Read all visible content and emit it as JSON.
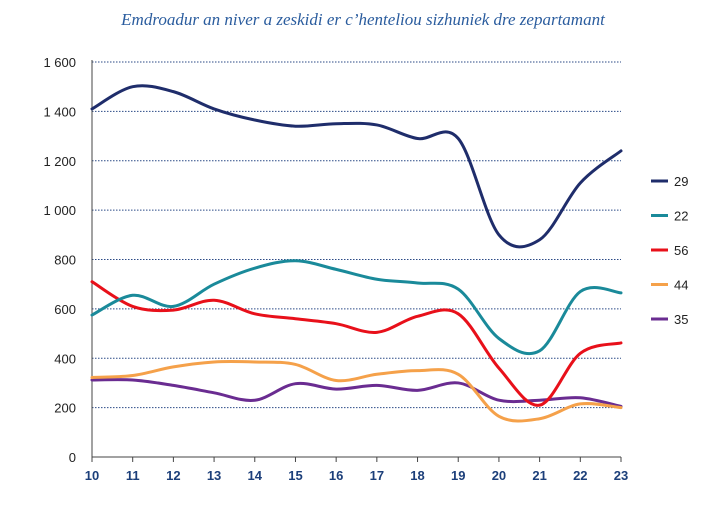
{
  "chart_data": {
    "type": "line",
    "title": "Emdroadur an niver a zeskidi er c’henteliou sizhuniek dre zepartamant",
    "xlabel": "",
    "ylabel": "",
    "x": [
      10,
      11,
      12,
      13,
      14,
      15,
      16,
      17,
      18,
      19,
      20,
      21,
      22,
      23
    ],
    "xlim": [
      10,
      23
    ],
    "ylim": [
      0,
      1600
    ],
    "yticks": [
      0,
      200,
      400,
      600,
      800,
      1000,
      1200,
      1400,
      1600
    ],
    "ytick_labels": [
      "0",
      "200",
      "400",
      "600",
      "800",
      "1 000",
      "1 200",
      "1 400",
      "1 600"
    ],
    "grid": "horizontal dotted",
    "legend_position": "right",
    "series": [
      {
        "name": "29",
        "color": "#1f2d6b",
        "values": [
          1410,
          1500,
          1480,
          1410,
          1365,
          1340,
          1350,
          1345,
          1290,
          1290,
          900,
          880,
          1110,
          1240
        ]
      },
      {
        "name": "22",
        "color": "#1a8a9a",
        "values": [
          575,
          655,
          610,
          700,
          765,
          795,
          760,
          720,
          705,
          680,
          480,
          430,
          670,
          665
        ]
      },
      {
        "name": "56",
        "color": "#e8101a",
        "values": [
          710,
          610,
          595,
          635,
          580,
          560,
          540,
          505,
          570,
          580,
          360,
          210,
          420,
          462
        ]
      },
      {
        "name": "44",
        "color": "#f5a14a",
        "values": [
          322,
          330,
          365,
          385,
          385,
          375,
          310,
          335,
          350,
          335,
          165,
          155,
          215,
          200
        ]
      },
      {
        "name": "35",
        "color": "#6a2c91",
        "values": [
          312,
          312,
          290,
          260,
          230,
          297,
          275,
          290,
          270,
          300,
          230,
          230,
          240,
          205
        ]
      }
    ]
  }
}
